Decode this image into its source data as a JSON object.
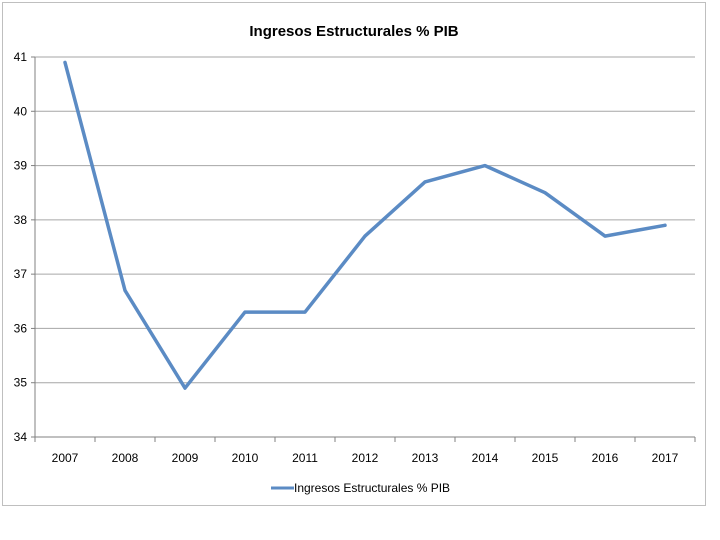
{
  "chart_data": {
    "type": "line",
    "title": "Ingresos Estructurales % PIB",
    "xlabel": "",
    "ylabel": "",
    "categories": [
      "2007",
      "2008",
      "2009",
      "2010",
      "2011",
      "2012",
      "2013",
      "2014",
      "2015",
      "2016",
      "2017"
    ],
    "yticks": [
      "34",
      "35",
      "36",
      "37",
      "38",
      "39",
      "40",
      "41"
    ],
    "ylim": [
      34,
      41
    ],
    "grid": true,
    "legend_position": "bottom",
    "series": [
      {
        "name": "Ingresos Estructurales % PIB",
        "color": "#5b8bc4",
        "values": [
          40.9,
          36.7,
          34.9,
          36.3,
          36.3,
          37.7,
          38.7,
          39.0,
          38.5,
          37.7,
          37.9
        ]
      }
    ]
  }
}
